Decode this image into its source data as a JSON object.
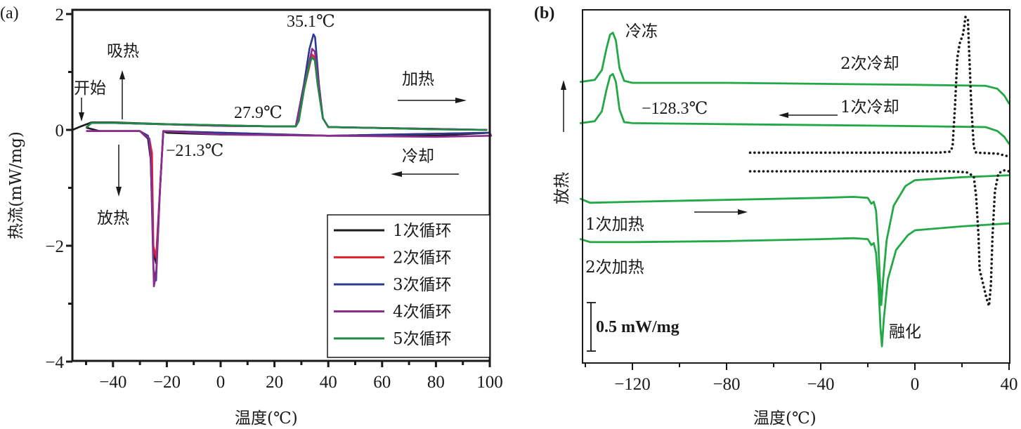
{
  "figure": {
    "panel_a_label": "(a)",
    "panel_b_label": "(b)"
  },
  "chart_data": [
    {
      "type": "line",
      "panel": "(a)",
      "title": "",
      "xlabel": "温度(℃)",
      "ylabel": "热流(mW/mg)",
      "xlim": [
        -55,
        100
      ],
      "ylim": [
        -4,
        2
      ],
      "xticks": [
        -40,
        -20,
        0,
        20,
        40,
        60,
        80,
        100
      ],
      "xtick_labels": [
        "−40",
        "−20",
        "0",
        "20",
        "40",
        "60",
        "80",
        "100"
      ],
      "yticks": [
        -4,
        -2,
        0,
        2
      ],
      "ytick_labels": [
        "−4",
        "−2",
        "0",
        "2"
      ],
      "grid": false,
      "legend_position": "bottom-right",
      "series": [
        {
          "name": "1次循环",
          "color": "#1a1a1a",
          "heating": [
            [
              -55,
              0
            ],
            [
              -52,
              0.06
            ],
            [
              -48,
              0.13
            ],
            [
              -40,
              0.13
            ],
            [
              -20,
              0.1
            ],
            [
              0,
              0.08
            ],
            [
              20,
              0.06
            ],
            [
              27.9,
              0.06
            ],
            [
              29,
              0.15
            ],
            [
              31,
              0.7
            ],
            [
              33,
              1.15
            ],
            [
              34,
              1.25
            ],
            [
              35,
              1.2
            ],
            [
              36,
              0.8
            ],
            [
              38,
              0.2
            ],
            [
              40,
              0.05
            ],
            [
              60,
              0.03
            ],
            [
              80,
              0.01
            ],
            [
              99,
              0
            ]
          ],
          "cooling": [
            [
              100,
              -0.05
            ],
            [
              80,
              -0.1
            ],
            [
              40,
              -0.1
            ],
            [
              0,
              -0.08
            ],
            [
              -20,
              -0.05
            ],
            [
              -21.3,
              -0.02
            ],
            [
              -22.5,
              -1.0
            ],
            [
              -24,
              -2.3
            ],
            [
              -25,
              -2.1
            ],
            [
              -26,
              -0.5
            ],
            [
              -27,
              -0.15
            ],
            [
              -30,
              -0.02
            ],
            [
              -45,
              -0.02
            ],
            [
              -50,
              0.04
            ]
          ]
        },
        {
          "name": "2次循环",
          "color": "#e8222e",
          "heating": [
            [
              -50,
              0.04
            ],
            [
              -48,
              0.12
            ],
            [
              -40,
              0.12
            ],
            [
              0,
              0.07
            ],
            [
              27.9,
              0.06
            ],
            [
              31,
              0.7
            ],
            [
              34,
              1.3
            ],
            [
              35,
              1.25
            ],
            [
              38,
              0.2
            ],
            [
              40,
              0.05
            ],
            [
              99,
              0
            ]
          ],
          "cooling": [
            [
              100,
              -0.05
            ],
            [
              40,
              -0.1
            ],
            [
              -21.3,
              -0.02
            ],
            [
              -22.5,
              -1.0
            ],
            [
              -24,
              -2.2
            ],
            [
              -25,
              -2.0
            ],
            [
              -25.5,
              -0.4
            ],
            [
              -26.5,
              -0.15
            ],
            [
              -30,
              -0.02
            ],
            [
              -50,
              -0.02
            ]
          ]
        },
        {
          "name": "3次循环",
          "color": "#2b3990",
          "heating": [
            [
              -50,
              0.04
            ],
            [
              -48,
              0.12
            ],
            [
              -40,
              0.12
            ],
            [
              0,
              0.07
            ],
            [
              27.9,
              0.06
            ],
            [
              31,
              0.8
            ],
            [
              33,
              1.4
            ],
            [
              34.5,
              1.65
            ],
            [
              35.1,
              1.6
            ],
            [
              36.5,
              0.8
            ],
            [
              38,
              0.2
            ],
            [
              40,
              0.05
            ],
            [
              99,
              0
            ]
          ],
          "cooling": [
            [
              100,
              -0.05
            ],
            [
              40,
              -0.1
            ],
            [
              -21.3,
              -0.02
            ],
            [
              -22.5,
              -1.0
            ],
            [
              -24,
              -2.6
            ],
            [
              -25,
              -2.4
            ],
            [
              -26,
              -0.4
            ],
            [
              -27,
              -0.1
            ],
            [
              -30,
              -0.02
            ],
            [
              -50,
              -0.02
            ]
          ]
        },
        {
          "name": "4次循环",
          "color": "#8b2c91",
          "heating": [
            [
              -50,
              0.04
            ],
            [
              -48,
              0.12
            ],
            [
              -40,
              0.12
            ],
            [
              0,
              0.07
            ],
            [
              27.9,
              0.06
            ],
            [
              31,
              0.75
            ],
            [
              34,
              1.4
            ],
            [
              35,
              1.35
            ],
            [
              38,
              0.2
            ],
            [
              40,
              0.05
            ],
            [
              99,
              0
            ]
          ],
          "cooling": [
            [
              100,
              -0.05
            ],
            [
              100.5,
              -0.1
            ],
            [
              80,
              -0.12
            ],
            [
              40,
              -0.1
            ],
            [
              0,
              -0.08
            ],
            [
              -21.3,
              -0.02
            ],
            [
              -22.5,
              -1.0
            ],
            [
              -24,
              -2.5
            ],
            [
              -24.8,
              -2.7
            ],
            [
              -25.8,
              -0.6
            ],
            [
              -26.5,
              -0.15
            ],
            [
              -30,
              -0.02
            ],
            [
              -50,
              -0.02
            ]
          ]
        },
        {
          "name": "5次循环",
          "color": "#1f8a45",
          "heating": [
            [
              -50,
              0.04
            ],
            [
              -48,
              0.12
            ],
            [
              -40,
              0.12
            ],
            [
              -20,
              0.1
            ],
            [
              0,
              0.08
            ],
            [
              20,
              0.06
            ],
            [
              27.9,
              0.06
            ],
            [
              29,
              0.15
            ],
            [
              31,
              0.7
            ],
            [
              33,
              1.15
            ],
            [
              34,
              1.25
            ],
            [
              35,
              1.2
            ],
            [
              36,
              0.8
            ],
            [
              38,
              0.2
            ],
            [
              40,
              0.05
            ],
            [
              60,
              0.03
            ],
            [
              80,
              0.01
            ],
            [
              99,
              0
            ]
          ],
          "cooling": []
        }
      ],
      "annotations": [
        {
          "text": "35.1℃",
          "x": 35.1,
          "y": 1.65
        },
        {
          "text": "27.9℃",
          "x": 27.9,
          "y": 0.06
        },
        {
          "text": "−21.3℃",
          "x": -21.3,
          "y": -0.02
        },
        {
          "text": "开始",
          "x": -52,
          "y": 0
        },
        {
          "text": "吸热",
          "x": -37,
          "y": 1.3
        },
        {
          "text": "放热",
          "x": -37,
          "y": -1.5
        },
        {
          "text": "加热",
          "x": 75,
          "y": 0.9
        },
        {
          "text": "冷却",
          "x": 75,
          "y": -0.65
        }
      ]
    },
    {
      "type": "line",
      "panel": "(b)",
      "title": "",
      "xlabel": "温度(℃)",
      "ylabel": "放热",
      "xlim": [
        -142,
        40
      ],
      "ylim": [
        0,
        3.6
      ],
      "y_units": "mW/mg (relative, curves offset)",
      "xticks": [
        -120,
        -80,
        -40,
        0,
        40
      ],
      "xtick_labels": [
        "−120",
        "−80",
        "−40",
        "0",
        "40"
      ],
      "yticks": [],
      "scale_bar": {
        "value": 0.5,
        "label": "0.5 mW/mg"
      },
      "grid": false,
      "series": [
        {
          "name": "2次冷却",
          "color": "#22a845",
          "style": "solid",
          "points": [
            [
              -142,
              2.86
            ],
            [
              -136,
              2.88
            ],
            [
              -133,
              2.98
            ],
            [
              -131,
              3.2
            ],
            [
              -129.5,
              3.34
            ],
            [
              -128.3,
              3.36
            ],
            [
              -127,
              3.28
            ],
            [
              -125.5,
              3.0
            ],
            [
              -123.5,
              2.87
            ],
            [
              -120,
              2.85
            ],
            [
              -80,
              2.85
            ],
            [
              -40,
              2.84
            ],
            [
              0,
              2.83
            ],
            [
              30,
              2.82
            ],
            [
              35,
              2.79
            ],
            [
              38,
              2.72
            ],
            [
              40,
              2.64
            ]
          ]
        },
        {
          "name": "1次冷却",
          "color": "#22a845",
          "style": "solid",
          "points": [
            [
              -142,
              2.44
            ],
            [
              -136,
              2.46
            ],
            [
              -133,
              2.56
            ],
            [
              -131,
              2.78
            ],
            [
              -129.5,
              2.92
            ],
            [
              -128.3,
              2.94
            ],
            [
              -127,
              2.86
            ],
            [
              -125.5,
              2.58
            ],
            [
              -123.5,
              2.45
            ],
            [
              -120,
              2.44
            ],
            [
              -80,
              2.43
            ],
            [
              -40,
              2.42
            ],
            [
              0,
              2.41
            ],
            [
              30,
              2.4
            ],
            [
              35,
              2.36
            ],
            [
              38,
              2.3
            ],
            [
              40,
              2.23
            ]
          ]
        },
        {
          "name": "1次加热",
          "color": "#22a845",
          "style": "solid",
          "points": [
            [
              -142,
              1.67
            ],
            [
              -138,
              1.63
            ],
            [
              -120,
              1.64
            ],
            [
              -80,
              1.66
            ],
            [
              -40,
              1.68
            ],
            [
              -26,
              1.69
            ],
            [
              -20,
              1.68
            ],
            [
              -18.5,
              1.62
            ],
            [
              -17.5,
              1.64
            ],
            [
              -16.5,
              1.55
            ],
            [
              -15.5,
              1.2
            ],
            [
              -14.8,
              0.8
            ],
            [
              -14.3,
              0.59
            ],
            [
              -13.5,
              0.85
            ],
            [
              -12,
              1.25
            ],
            [
              -9,
              1.6
            ],
            [
              -4,
              1.8
            ],
            [
              0,
              1.86
            ],
            [
              20,
              1.89
            ],
            [
              40,
              1.91
            ]
          ]
        },
        {
          "name": "2次加热",
          "color": "#22a845",
          "style": "solid",
          "points": [
            [
              -142,
              1.26
            ],
            [
              -138,
              1.23
            ],
            [
              -120,
              1.23
            ],
            [
              -80,
              1.24
            ],
            [
              -40,
              1.26
            ],
            [
              -26,
              1.27
            ],
            [
              -20,
              1.26
            ],
            [
              -18.5,
              1.2
            ],
            [
              -17.5,
              1.22
            ],
            [
              -16.5,
              1.12
            ],
            [
              -15.5,
              0.8
            ],
            [
              -14.6,
              0.35
            ],
            [
              -14,
              0.17
            ],
            [
              -13.2,
              0.45
            ],
            [
              -11.5,
              0.85
            ],
            [
              -8,
              1.15
            ],
            [
              -3,
              1.3
            ],
            [
              0,
              1.35
            ],
            [
              20,
              1.39
            ],
            [
              40,
              1.42
            ]
          ]
        },
        {
          "name": "冷却 (dotted)",
          "color": "#1a1a1a",
          "style": "dotted",
          "points": [
            [
              -70,
              2.14
            ],
            [
              -20,
              2.14
            ],
            [
              10,
              2.14
            ],
            [
              15,
              2.15
            ],
            [
              16,
              2.2
            ],
            [
              17,
              2.6
            ],
            [
              18,
              3.1
            ],
            [
              19,
              3.25
            ],
            [
              20.5,
              3.35
            ],
            [
              21.5,
              3.52
            ],
            [
              22.5,
              3.5
            ],
            [
              23,
              3.2
            ],
            [
              24,
              2.6
            ],
            [
              25,
              2.2
            ],
            [
              26,
              2.14
            ],
            [
              35,
              2.13
            ],
            [
              40,
              2.1
            ]
          ]
        },
        {
          "name": "加热 (dotted)",
          "color": "#1a1a1a",
          "style": "dotted",
          "points": [
            [
              -70,
              1.95
            ],
            [
              -20,
              1.95
            ],
            [
              15,
              1.95
            ],
            [
              22,
              1.94
            ],
            [
              25,
              1.9
            ],
            [
              26,
              1.7
            ],
            [
              27,
              1.3
            ],
            [
              27.5,
              0.95
            ],
            [
              29,
              0.8
            ],
            [
              30.5,
              0.65
            ],
            [
              31.5,
              0.58
            ],
            [
              32.3,
              0.8
            ],
            [
              33,
              1.3
            ],
            [
              34,
              1.75
            ],
            [
              35.5,
              1.93
            ],
            [
              38,
              1.96
            ],
            [
              40,
              1.95
            ]
          ]
        }
      ],
      "annotations": [
        {
          "text": "冷冻",
          "x": -122,
          "y": 3.32
        },
        {
          "text": "2次冷却",
          "x": 5,
          "y": 3.0
        },
        {
          "text": "−128.3℃",
          "x": -116,
          "y": 2.57
        },
        {
          "text": "1次冷却",
          "x": -18,
          "y": 2.57
        },
        {
          "text": "1次加热",
          "x": -141,
          "y": 1.45
        },
        {
          "text": "2次加热",
          "x": -141,
          "y": 0.98
        },
        {
          "text": "融化",
          "x": -11,
          "y": 0.23
        }
      ]
    }
  ]
}
